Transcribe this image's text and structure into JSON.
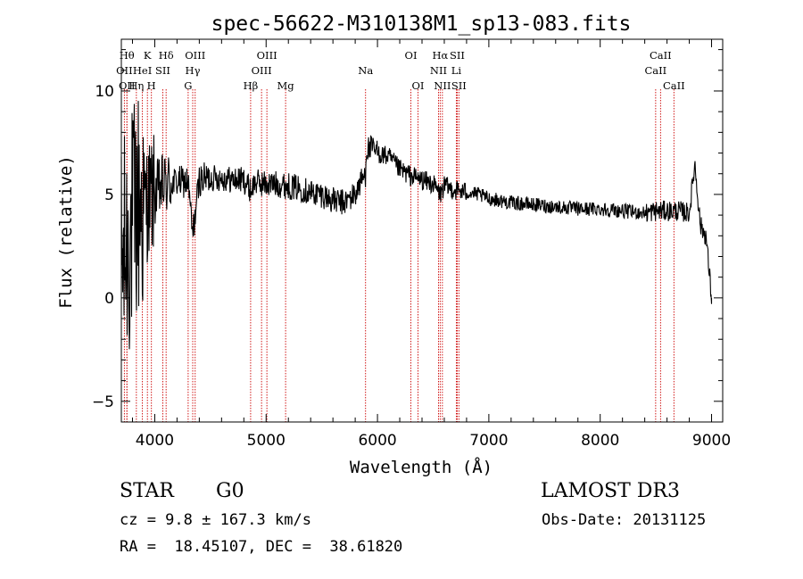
{
  "chart_data": {
    "type": "line",
    "title": "spec-56622-M310138M1_sp13-083.fits",
    "xlabel": "Wavelength (Å)",
    "ylabel": "Flux (relative)",
    "xlim": [
      3700,
      9100
    ],
    "ylim": [
      -6,
      12.5
    ],
    "x_ticks": [
      4000,
      5000,
      6000,
      7000,
      8000,
      9000
    ],
    "x_tick_labels": [
      "4000",
      "5000",
      "6000",
      "7000",
      "8000",
      "9000"
    ],
    "y_ticks": [
      -5,
      0,
      5,
      10
    ],
    "y_tick_labels": [
      "−5",
      "0",
      "5",
      "10"
    ],
    "grid": false,
    "line_color": "#000000",
    "marker_color": "#cc0000",
    "spectrum_envelope": {
      "x": [
        3700,
        3750,
        3800,
        3850,
        3900,
        3950,
        4000,
        4050,
        4100,
        4200,
        4300,
        4340,
        4400,
        4500,
        4600,
        4700,
        4800,
        4861,
        4900,
        5000,
        5100,
        5200,
        5300,
        5400,
        5500,
        5600,
        5700,
        5800,
        5850,
        5893,
        5900,
        5950,
        6000,
        6100,
        6200,
        6300,
        6400,
        6500,
        6563,
        6600,
        6700,
        6800,
        6900,
        7000,
        7200,
        7400,
        7600,
        7800,
        8000,
        8200,
        8400,
        8500,
        8600,
        8700,
        8800,
        8850,
        8900,
        8950,
        9000
      ],
      "y": [
        1.5,
        2.5,
        3.5,
        4.5,
        4.5,
        4.8,
        5.0,
        5.3,
        5.5,
        5.6,
        5.6,
        3.0,
        5.7,
        5.8,
        5.8,
        5.7,
        5.7,
        5.2,
        5.6,
        5.5,
        5.5,
        5.4,
        5.3,
        5.1,
        5.0,
        4.7,
        4.6,
        5.0,
        5.6,
        6.0,
        7.2,
        7.2,
        7.0,
        6.8,
        6.2,
        5.9,
        5.7,
        5.5,
        5.0,
        5.4,
        5.2,
        5.1,
        5.0,
        4.8,
        4.6,
        4.5,
        4.4,
        4.3,
        4.3,
        4.2,
        4.1,
        4.2,
        4.2,
        4.2,
        4.1,
        6.5,
        3.5,
        3.0,
        0.0
      ]
    },
    "lines": [
      {
        "lambda": 3727,
        "label": "OII",
        "row": 2
      },
      {
        "lambda": 3750,
        "label": "OII",
        "row": 3
      },
      {
        "lambda": 3750,
        "label": "Hθ",
        "row": 1
      },
      {
        "lambda": 3835,
        "label": "Hη",
        "row": 3
      },
      {
        "lambda": 3889,
        "label": "HeI",
        "row": 2
      },
      {
        "lambda": 3934,
        "label": "K",
        "row": 1
      },
      {
        "lambda": 3970,
        "label": "H",
        "row": 3
      },
      {
        "lambda": 4072,
        "label": "SII",
        "row": 2
      },
      {
        "lambda": 4102,
        "label": "Hδ",
        "row": 1
      },
      {
        "lambda": 4300,
        "label": "G",
        "row": 3
      },
      {
        "lambda": 4341,
        "label": "Hγ",
        "row": 2
      },
      {
        "lambda": 4363,
        "label": "OIII",
        "row": 1
      },
      {
        "lambda": 4861,
        "label": "Hβ",
        "row": 3
      },
      {
        "lambda": 4959,
        "label": "OIII",
        "row": 2
      },
      {
        "lambda": 5007,
        "label": "OIII",
        "row": 1
      },
      {
        "lambda": 5175,
        "label": "Mg",
        "row": 3
      },
      {
        "lambda": 5893,
        "label": "Na",
        "row": 2
      },
      {
        "lambda": 6300,
        "label": "OI",
        "row": 1
      },
      {
        "lambda": 6364,
        "label": "OI",
        "row": 3
      },
      {
        "lambda": 6548,
        "label": "NII",
        "row": 2
      },
      {
        "lambda": 6563,
        "label": "Hα",
        "row": 1
      },
      {
        "lambda": 6583,
        "label": "NII",
        "row": 3
      },
      {
        "lambda": 6708,
        "label": "Li",
        "row": 2
      },
      {
        "lambda": 6716,
        "label": "SII",
        "row": 1
      },
      {
        "lambda": 6731,
        "label": "SII",
        "row": 3
      },
      {
        "lambda": 8498,
        "label": "CaII",
        "row": 2
      },
      {
        "lambda": 8542,
        "label": "CaII",
        "row": 1
      },
      {
        "lambda": 8662,
        "label": "CaII",
        "row": 3
      }
    ]
  },
  "info": {
    "class": "STAR",
    "subclass": "G0",
    "survey": "LAMOST DR3",
    "cz": "cz = 9.8 ± 167.3 km/s",
    "obs_date": "Obs-Date: 20131125",
    "radec": "RA =  18.45107, DEC =  38.61820"
  }
}
